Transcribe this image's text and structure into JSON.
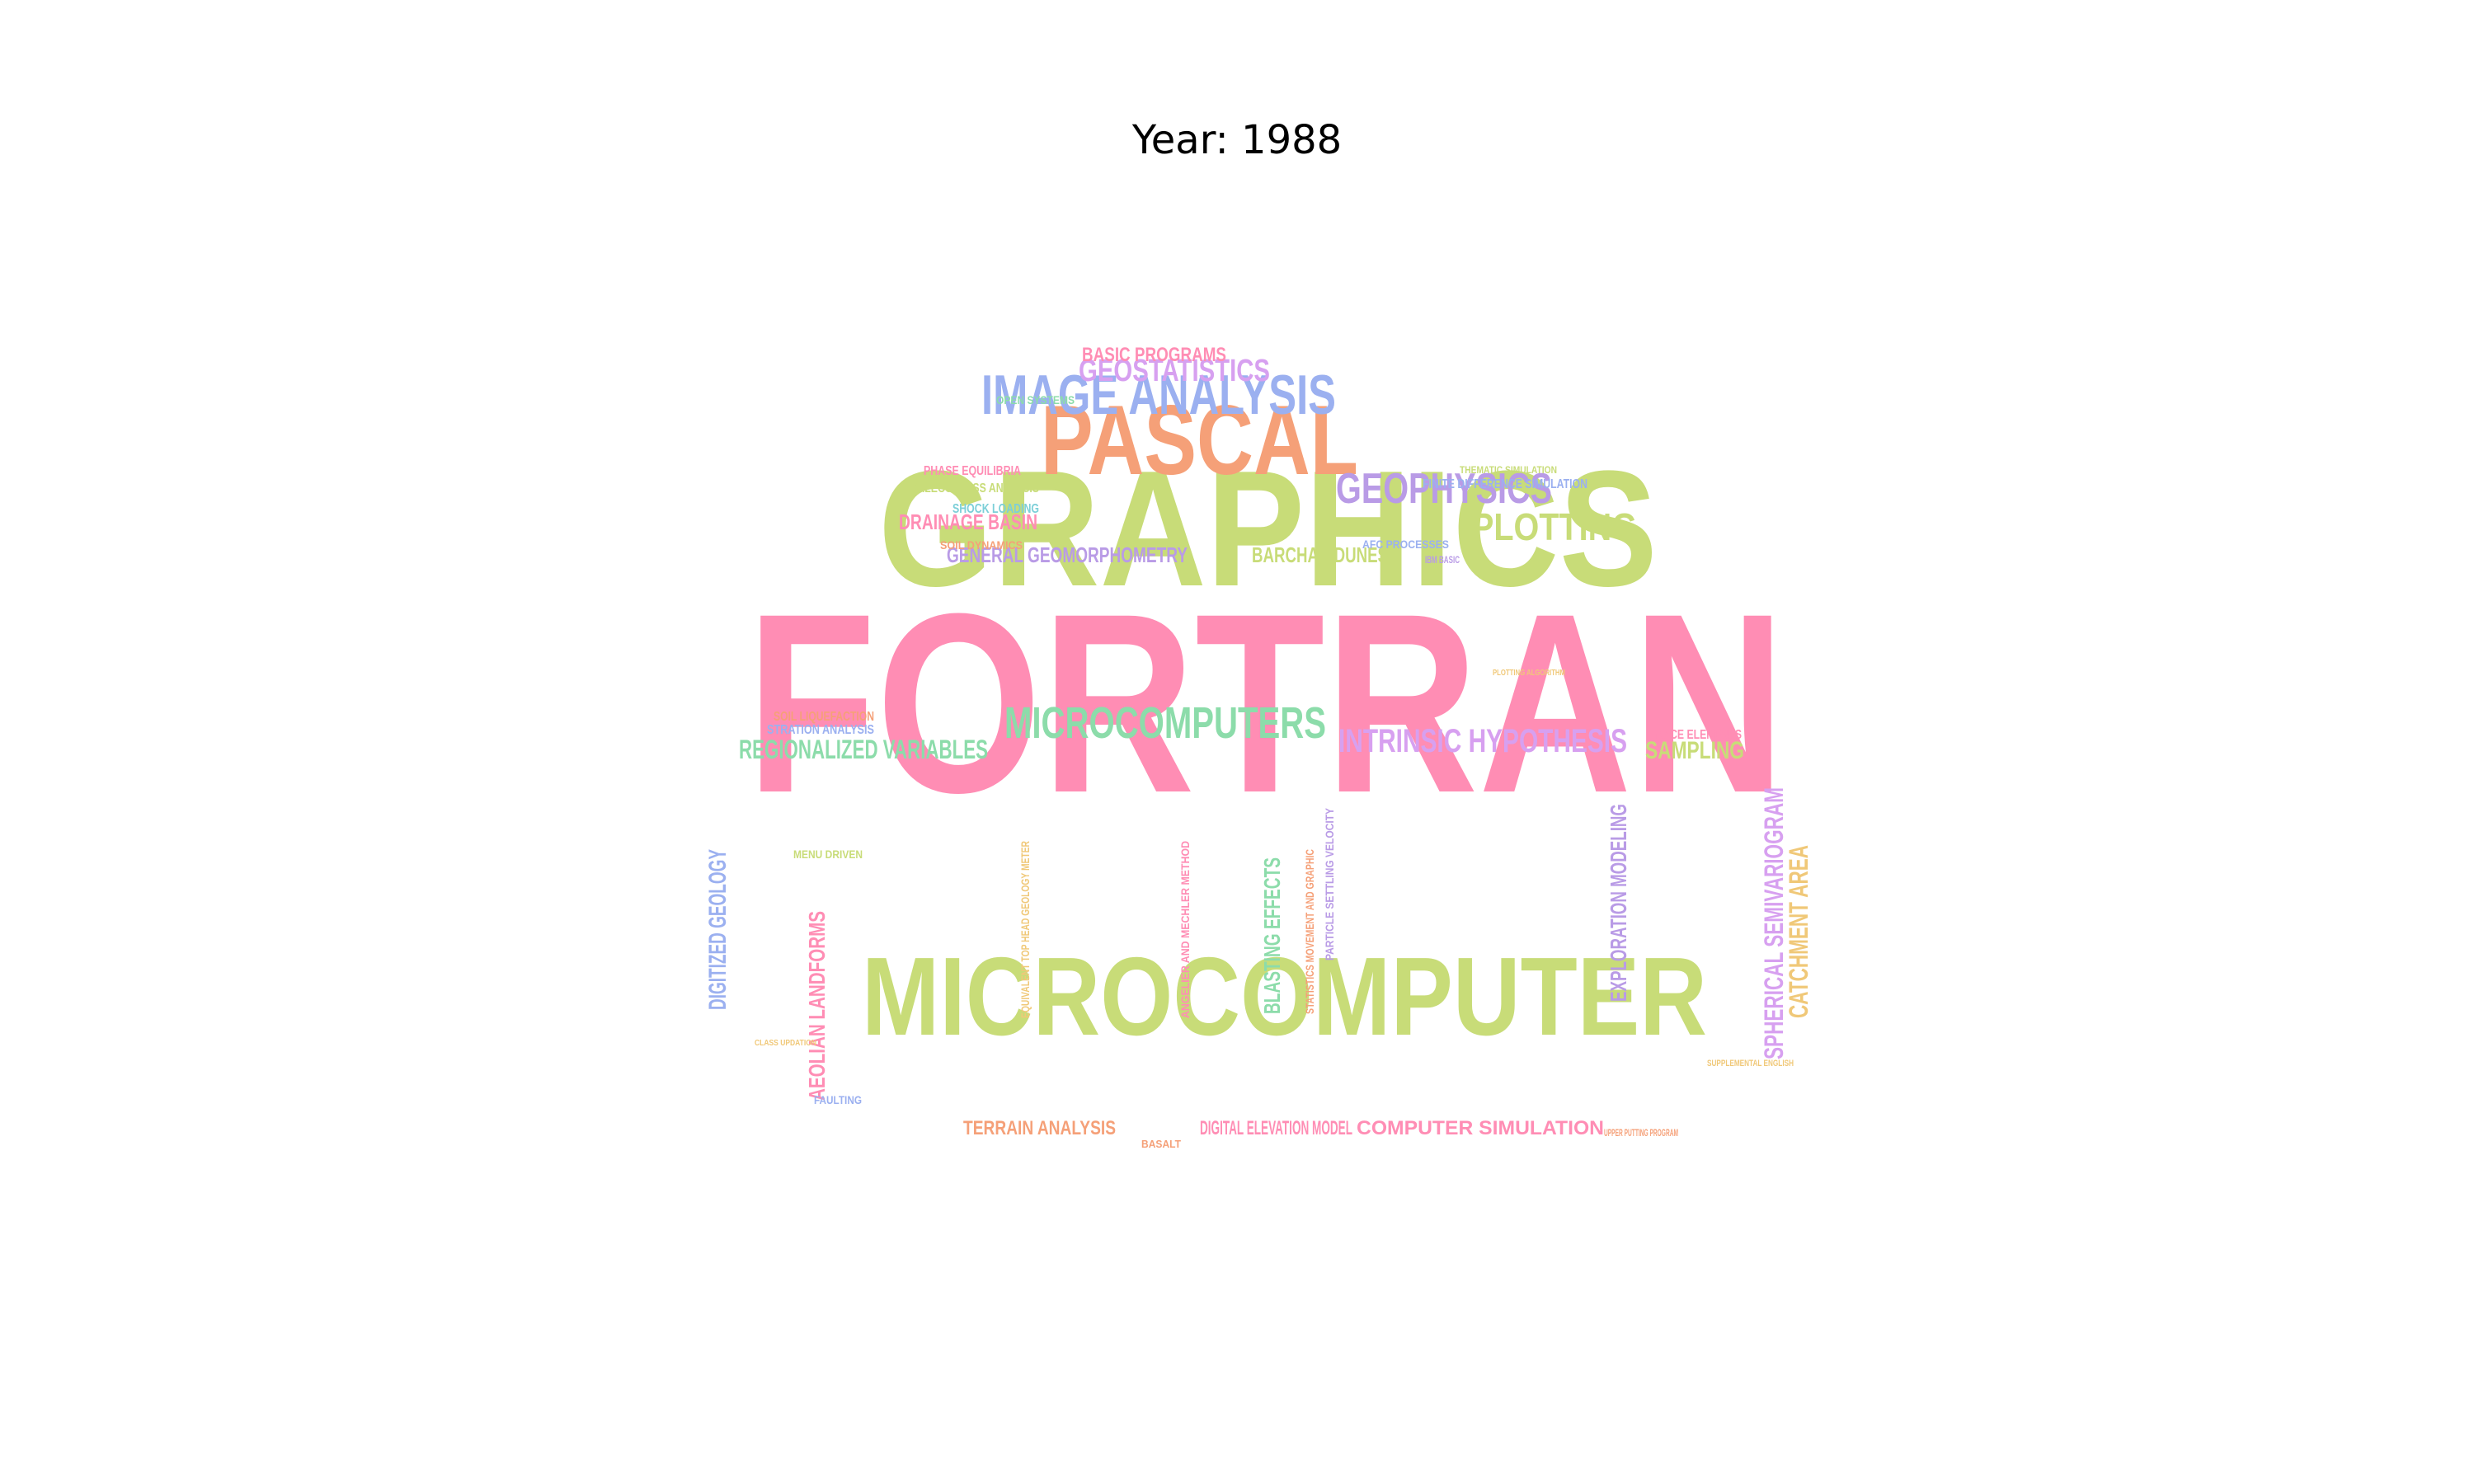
{
  "title": "Year: 1988",
  "palette": {
    "pink": "#ff8db4",
    "green": "#c8dc78",
    "orange": "#f5a078",
    "blue": "#9bb0f0",
    "purple": "#b99be6",
    "lilac": "#d7a0f0",
    "mint": "#8cdcaa",
    "yellow": "#f0c878",
    "teal": "#7ccfd8"
  },
  "words": [
    {
      "text": "FORTRAN",
      "color": "pink"
    },
    {
      "text": "GRAPHICS",
      "color": "green"
    },
    {
      "text": "MICROCOMPUTER",
      "color": "green"
    },
    {
      "text": "PASCAL",
      "color": "orange"
    },
    {
      "text": "IMAGE ANALYSIS",
      "color": "blue"
    },
    {
      "text": "MICROCOMPUTERS",
      "color": "mint"
    },
    {
      "text": "GEOPHYSICS",
      "color": "purple"
    },
    {
      "text": "PLOTTING",
      "color": "green"
    },
    {
      "text": "GEOSTATISTICS",
      "color": "lilac"
    },
    {
      "text": "INTRINSIC HYPOTHESIS",
      "color": "lilac"
    },
    {
      "text": "REGIONALIZED VARIABLES",
      "color": "mint"
    },
    {
      "text": "SAMPLING",
      "color": "green"
    },
    {
      "text": "BASIC PROGRAMS",
      "color": "pink"
    },
    {
      "text": "DRAINAGE BASIN",
      "color": "pink"
    },
    {
      "text": "GENERAL GEOMORPHOMETRY",
      "color": "purple"
    },
    {
      "text": "BARCHAN DUNES",
      "color": "green"
    },
    {
      "text": "TERRAIN ANALYSIS",
      "color": "orange"
    },
    {
      "text": "DIGITAL ELEVATION MODEL",
      "color": "pink"
    },
    {
      "text": "COMPUTER SIMULATION",
      "color": "pink"
    },
    {
      "text": "DIGITIZED GEOLOGY",
      "color": "blue"
    },
    {
      "text": "AEOLIAN LANDFORMS",
      "color": "pink"
    },
    {
      "text": "BLASTING EFFECTS",
      "color": "mint"
    },
    {
      "text": "EXPLORATION MODELING",
      "color": "purple"
    },
    {
      "text": "SPHERICAL SEMIVARIOGRAM",
      "color": "lilac"
    },
    {
      "text": "CATCHMENT AREA",
      "color": "yellow"
    },
    {
      "text": "OPEN SYSTEMS",
      "color": "mint"
    },
    {
      "text": "PHASE EQUILIBRIA",
      "color": "pink"
    },
    {
      "text": "PALEOSTRESS ANALYSIS",
      "color": "green"
    },
    {
      "text": "SHOCK LOADING",
      "color": "teal"
    },
    {
      "text": "SOIL DYNAMICS",
      "color": "orange"
    },
    {
      "text": "FINITE DIFFERENCE SIMULATION",
      "color": "blue"
    },
    {
      "text": "THEMATIC SIMULATION",
      "color": "green"
    },
    {
      "text": "AFC PROCESSES",
      "color": "blue"
    },
    {
      "text": "IBM BASIC",
      "color": "purple"
    },
    {
      "text": "SOIL LIQUEFACTION",
      "color": "orange"
    },
    {
      "text": "STRATION ANALYSIS",
      "color": "blue"
    },
    {
      "text": "TRACE ELEMENTS",
      "color": "pink"
    },
    {
      "text": "MENU DRIVEN",
      "color": "green"
    },
    {
      "text": "EQUIVALENT TOP HEAD GEOLOGY METER",
      "color": "yellow"
    },
    {
      "text": "ANGELIER AND MECHLER METHOD",
      "color": "pink"
    },
    {
      "text": "STATISTICS MOVEMENT AND GRAPHIC",
      "color": "orange"
    },
    {
      "text": "PARTICLE SETTLING VELOCITY",
      "color": "purple"
    },
    {
      "text": "FAULTING",
      "color": "blue"
    },
    {
      "text": "BASALT",
      "color": "orange"
    },
    {
      "text": "CLASS UPDATION",
      "color": "yellow"
    },
    {
      "text": "SUPPLEMENTAL ENGLISH",
      "color": "yellow"
    },
    {
      "text": "PLOTTING ALGORITHM",
      "color": "yellow"
    },
    {
      "text": "UPPER PUTTING PROGRAM",
      "color": "orange"
    }
  ]
}
